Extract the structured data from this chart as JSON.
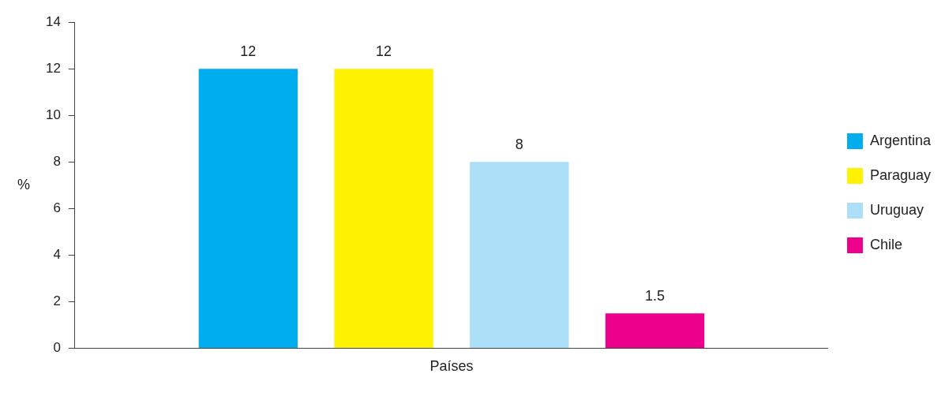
{
  "chart_data": {
    "type": "bar",
    "xlabel": "Países",
    "ylabel": "%",
    "categories": [
      null
    ],
    "series": [
      {
        "name": "Argentina",
        "color": "#00aeef",
        "values": [
          12
        ]
      },
      {
        "name": "Paraguay",
        "color": "#fff200",
        "values": [
          12
        ]
      },
      {
        "name": "Uruguay",
        "color": "#abdff8",
        "values": [
          8
        ]
      },
      {
        "name": "Chile",
        "color": "#ec008c",
        "values": [
          1.5
        ]
      }
    ],
    "ylim": [
      0,
      14
    ],
    "yticks": [
      0,
      2,
      4,
      6,
      8,
      10,
      12,
      14
    ],
    "data_labels": true,
    "legend": "right",
    "grid": false
  }
}
